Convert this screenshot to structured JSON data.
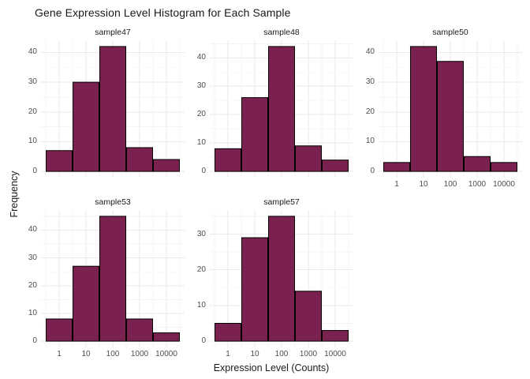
{
  "page": {
    "background": "#FFFFFF"
  },
  "chart_data": {
    "type": "bar",
    "subtype": "faceted-histogram",
    "title": "Gene Expression Level Histogram for Each Sample",
    "xlabel": "Expression Level (Counts)",
    "ylabel": "Frequency",
    "x_scale": "log10",
    "x_tick_labels": [
      "1",
      "10",
      "100",
      "1000",
      "10000"
    ],
    "grid": true,
    "legend": "none",
    "facet_columns": 3,
    "panels": [
      {
        "name": "sample47",
        "values": [
          7,
          30,
          42,
          8,
          4
        ],
        "y_ticks": [
          0,
          10,
          20,
          30,
          40
        ],
        "show_x_axis": false
      },
      {
        "name": "sample48",
        "values": [
          8,
          26,
          44,
          9,
          4
        ],
        "y_ticks": [
          0,
          10,
          20,
          30,
          40
        ],
        "show_x_axis": false
      },
      {
        "name": "sample50",
        "values": [
          3,
          42,
          37,
          5,
          3
        ],
        "y_ticks": [
          0,
          10,
          20,
          30,
          40
        ],
        "show_x_axis": true
      },
      {
        "name": "sample53",
        "values": [
          8,
          27,
          45,
          8,
          3
        ],
        "y_ticks": [
          0,
          10,
          20,
          30,
          40
        ],
        "show_x_axis": true
      },
      {
        "name": "sample57",
        "values": [
          5,
          29,
          35,
          14,
          3
        ],
        "y_ticks": [
          0,
          10,
          20,
          30
        ],
        "show_x_axis": true
      }
    ],
    "colors": {
      "bar_fill": "#7B2150",
      "bar_stroke": "#000000",
      "grid_major": "#EAEAEA",
      "grid_minor": "#F5F5F5",
      "tick_label": "#4D4D4D",
      "text": "#1A1A1A",
      "background": "#FFFFFF"
    }
  }
}
